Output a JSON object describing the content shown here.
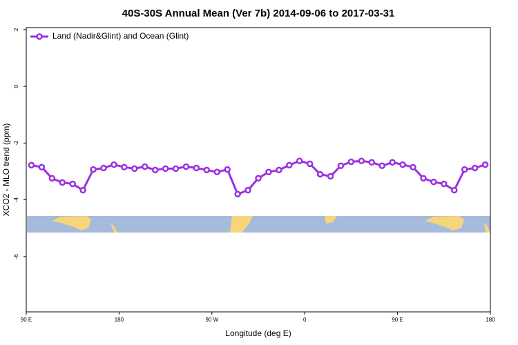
{
  "chart_data": {
    "type": "line",
    "title": "40S-30S Annual Mean (Ver 7b)   2014-09-06 to 2017-03-31",
    "x_label": "Longitude (deg E)",
    "y_label": "XCO2 - MLO trend (ppm)",
    "x": [
      95,
      105,
      115,
      125,
      135,
      145,
      155,
      165,
      175,
      185,
      195,
      205,
      215,
      225,
      235,
      245,
      255,
      265,
      275,
      285,
      295,
      305,
      315,
      325,
      335,
      345,
      355,
      365,
      375,
      385,
      395,
      405,
      415,
      425,
      435,
      445,
      455,
      465,
      475,
      485,
      495,
      505,
      515,
      525,
      535
    ],
    "series": [
      {
        "name": "Land (Nadir&Glint) and Ocean (Glint)",
        "color": "#9b30e0",
        "values": [
          -2.78,
          -2.85,
          -3.24,
          -3.39,
          -3.44,
          -3.66,
          -2.93,
          -2.88,
          -2.76,
          -2.85,
          -2.9,
          -2.83,
          -2.95,
          -2.9,
          -2.9,
          -2.83,
          -2.88,
          -2.95,
          -3.02,
          -2.93,
          -3.8,
          -3.66,
          -3.24,
          -3.02,
          -2.95,
          -2.78,
          -2.63,
          -2.73,
          -3.1,
          -3.17,
          -2.8,
          -2.66,
          -2.63,
          -2.68,
          -2.8,
          -2.68,
          -2.76,
          -2.85,
          -3.24,
          -3.37,
          -3.44,
          -3.66,
          -2.93,
          -2.88,
          -2.76
        ]
      }
    ],
    "xlim": [
      90,
      540
    ],
    "xticks": [
      {
        "value": 90,
        "label": "90 E"
      },
      180,
      {
        "value": 270,
        "label": "90 W"
      },
      {
        "value": 360,
        "label": "0"
      },
      {
        "value": 450,
        "label": "90 E"
      },
      {
        "value": 540,
        "label": "180"
      }
    ],
    "ylim": [
      -7.95,
      2.07
    ],
    "yticks": [
      -6,
      -4,
      -2,
      0,
      2
    ],
    "legend": "top-left"
  }
}
